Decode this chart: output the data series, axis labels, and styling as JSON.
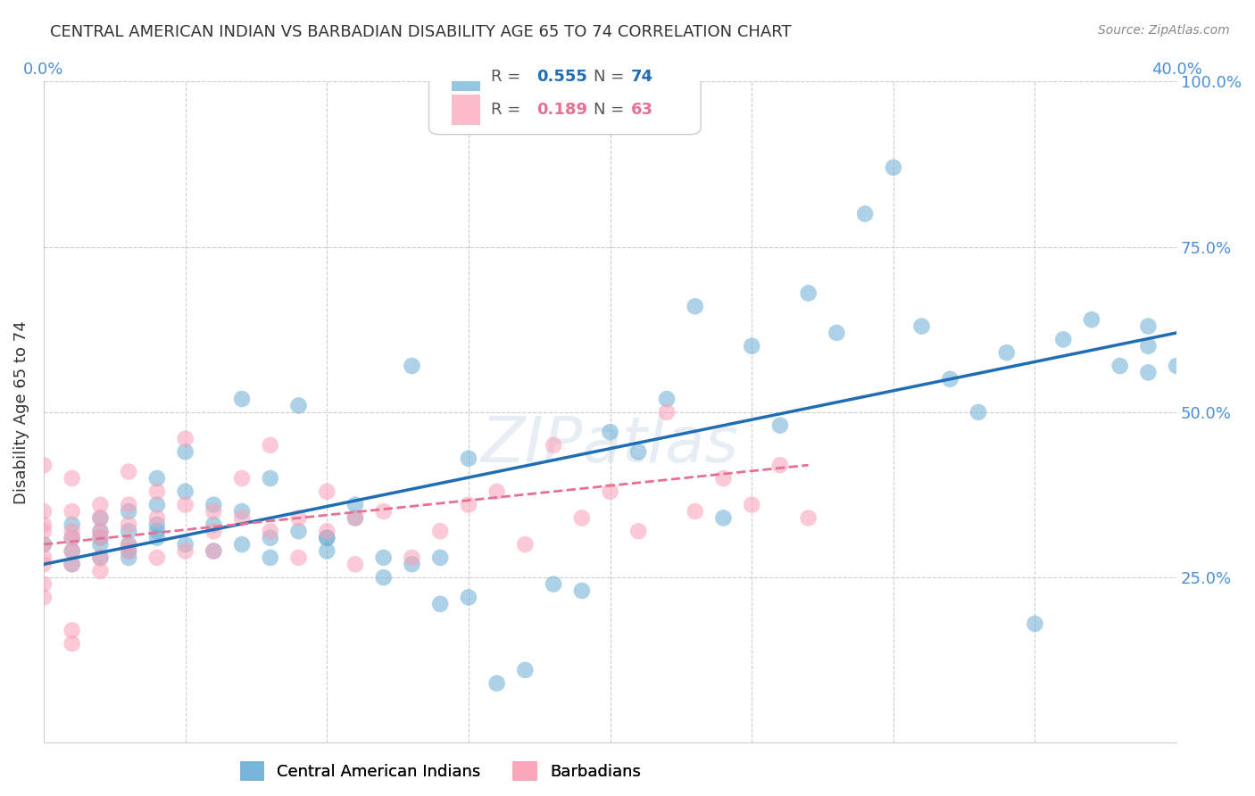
{
  "title": "CENTRAL AMERICAN INDIAN VS BARBADIAN DISABILITY AGE 65 TO 74 CORRELATION CHART",
  "source": "Source: ZipAtlas.com",
  "xlabel": "",
  "ylabel": "Disability Age 65 to 74",
  "xlim": [
    0.0,
    0.4
  ],
  "ylim": [
    0.0,
    1.0
  ],
  "xticks": [
    0.0,
    0.05,
    0.1,
    0.15,
    0.2,
    0.25,
    0.3,
    0.35,
    0.4
  ],
  "xticklabels": [
    "0.0%",
    "",
    "",
    "",
    "",
    "",
    "",
    "",
    "40.0%"
  ],
  "yticks": [
    0.0,
    0.25,
    0.5,
    0.75,
    1.0
  ],
  "yticklabels": [
    "",
    "25.0%",
    "50.0%",
    "75.0%",
    "100.0%"
  ],
  "legend_r1": "R = 0.555",
  "legend_n1": "N = 74",
  "legend_r2": "R = 0.189",
  "legend_n2": "N = 63",
  "color_blue": "#6baed6",
  "color_pink": "#fa9fb5",
  "line_blue": "#1f6eb5",
  "line_pink": "#e87090",
  "watermark": "ZIPatlas",
  "background_color": "#ffffff",
  "grid_color": "#cccccc",
  "blue_scatter_x": [
    0.0,
    0.01,
    0.01,
    0.01,
    0.01,
    0.02,
    0.02,
    0.02,
    0.02,
    0.02,
    0.03,
    0.03,
    0.03,
    0.03,
    0.03,
    0.04,
    0.04,
    0.04,
    0.04,
    0.04,
    0.05,
    0.05,
    0.05,
    0.06,
    0.06,
    0.06,
    0.07,
    0.07,
    0.07,
    0.08,
    0.08,
    0.08,
    0.09,
    0.09,
    0.1,
    0.1,
    0.1,
    0.11,
    0.11,
    0.12,
    0.12,
    0.13,
    0.13,
    0.14,
    0.14,
    0.15,
    0.15,
    0.16,
    0.17,
    0.18,
    0.19,
    0.2,
    0.21,
    0.22,
    0.23,
    0.24,
    0.25,
    0.26,
    0.27,
    0.28,
    0.29,
    0.3,
    0.31,
    0.32,
    0.33,
    0.34,
    0.35,
    0.36,
    0.37,
    0.38,
    0.39,
    0.39,
    0.39,
    0.4
  ],
  "blue_scatter_y": [
    0.3,
    0.27,
    0.31,
    0.33,
    0.29,
    0.28,
    0.32,
    0.3,
    0.34,
    0.31,
    0.3,
    0.32,
    0.35,
    0.28,
    0.29,
    0.31,
    0.33,
    0.36,
    0.4,
    0.32,
    0.44,
    0.38,
    0.3,
    0.33,
    0.36,
    0.29,
    0.35,
    0.3,
    0.52,
    0.4,
    0.31,
    0.28,
    0.32,
    0.51,
    0.31,
    0.29,
    0.31,
    0.36,
    0.34,
    0.28,
    0.25,
    0.27,
    0.57,
    0.28,
    0.21,
    0.43,
    0.22,
    0.09,
    0.11,
    0.24,
    0.23,
    0.47,
    0.44,
    0.52,
    0.66,
    0.34,
    0.6,
    0.48,
    0.68,
    0.62,
    0.8,
    0.87,
    0.63,
    0.55,
    0.5,
    0.59,
    0.18,
    0.61,
    0.64,
    0.57,
    0.6,
    0.63,
    0.56,
    0.57
  ],
  "pink_scatter_x": [
    0.0,
    0.0,
    0.0,
    0.0,
    0.0,
    0.0,
    0.0,
    0.0,
    0.0,
    0.01,
    0.01,
    0.01,
    0.01,
    0.01,
    0.01,
    0.01,
    0.01,
    0.02,
    0.02,
    0.02,
    0.02,
    0.02,
    0.02,
    0.03,
    0.03,
    0.03,
    0.03,
    0.03,
    0.04,
    0.04,
    0.04,
    0.05,
    0.05,
    0.05,
    0.06,
    0.06,
    0.06,
    0.07,
    0.07,
    0.08,
    0.08,
    0.09,
    0.09,
    0.1,
    0.1,
    0.11,
    0.11,
    0.12,
    0.13,
    0.14,
    0.15,
    0.16,
    0.17,
    0.18,
    0.19,
    0.2,
    0.21,
    0.22,
    0.23,
    0.24,
    0.25,
    0.26,
    0.27
  ],
  "pink_scatter_y": [
    0.3,
    0.33,
    0.28,
    0.42,
    0.24,
    0.27,
    0.35,
    0.32,
    0.22,
    0.31,
    0.35,
    0.29,
    0.27,
    0.32,
    0.4,
    0.17,
    0.15,
    0.28,
    0.32,
    0.36,
    0.31,
    0.34,
    0.26,
    0.29,
    0.33,
    0.36,
    0.41,
    0.3,
    0.34,
    0.28,
    0.38,
    0.29,
    0.36,
    0.46,
    0.32,
    0.35,
    0.29,
    0.34,
    0.4,
    0.32,
    0.45,
    0.34,
    0.28,
    0.38,
    0.32,
    0.34,
    0.27,
    0.35,
    0.28,
    0.32,
    0.36,
    0.38,
    0.3,
    0.45,
    0.34,
    0.38,
    0.32,
    0.5,
    0.35,
    0.4,
    0.36,
    0.42,
    0.34
  ],
  "blue_line_x": [
    0.0,
    0.4
  ],
  "blue_line_y": [
    0.27,
    0.62
  ],
  "pink_line_x": [
    0.0,
    0.27
  ],
  "pink_line_y": [
    0.3,
    0.42
  ]
}
